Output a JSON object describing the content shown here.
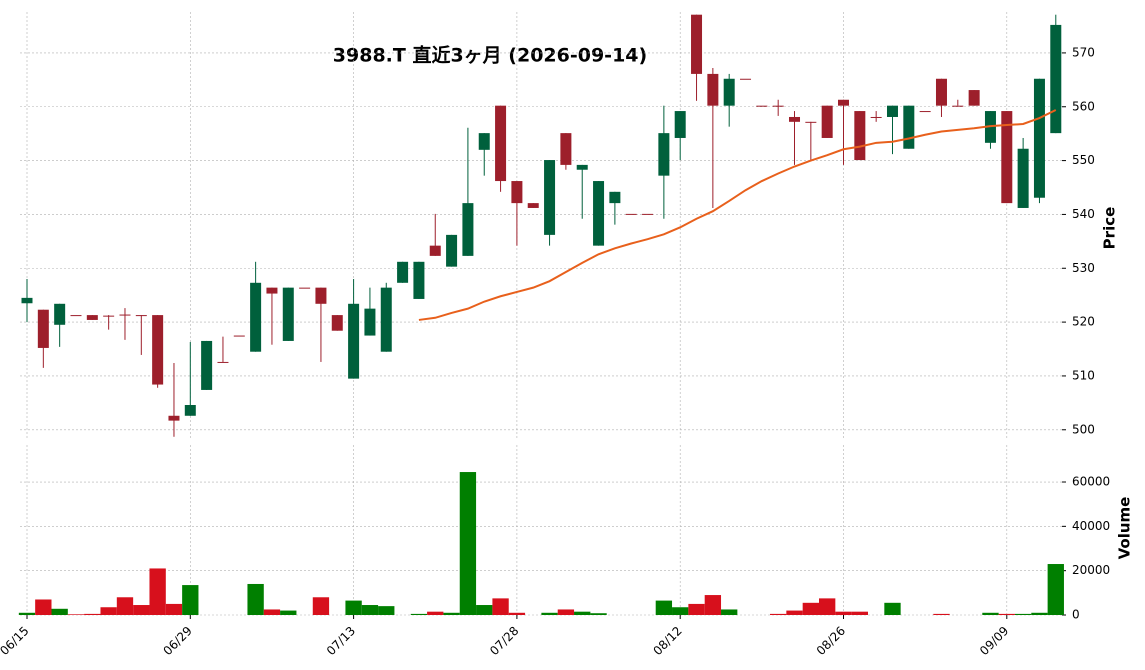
{
  "chart_data": {
    "type": "candlestick",
    "title": "3988.T  直近3ヶ月  (2026-09-14)",
    "ylabel": "Price",
    "volume_label": "Volume",
    "categories": [
      "06/15",
      null,
      null,
      null,
      null,
      null,
      null,
      null,
      null,
      null,
      "06/29",
      null,
      null,
      null,
      null,
      null,
      null,
      null,
      null,
      null,
      "07/13",
      null,
      null,
      null,
      null,
      null,
      null,
      null,
      null,
      null,
      "07/28",
      null,
      null,
      null,
      null,
      null,
      null,
      null,
      null,
      null,
      "08/12",
      null,
      null,
      null,
      null,
      null,
      null,
      null,
      null,
      null,
      "08/26",
      null,
      null,
      null,
      null,
      null,
      null,
      null,
      null,
      null,
      "09/09",
      null,
      null,
      null
    ],
    "open": [
      523.5,
      522.3,
      519.5,
      521.3,
      521.3,
      521.2,
      521.4,
      521.3,
      521.3,
      502.6,
      502.6,
      507.4,
      512.6,
      517.5,
      514.5,
      526.4,
      516.5,
      526.4,
      526.4,
      521.3,
      509.5,
      517.5,
      514.5,
      527.3,
      524.3,
      534.2,
      530.3,
      532.3,
      552,
      560.2,
      546.2,
      542.1,
      536.2,
      555.1,
      548.3,
      534.2,
      542.1,
      540.1,
      540.1,
      547.2,
      554.2,
      577.1,
      566.1,
      560.2,
      565.2,
      560.2,
      560.2,
      558.1,
      557.2,
      560.2,
      561.3,
      559.2,
      558.1,
      558.1,
      552.2,
      559.2,
      565.2,
      560.2,
      563.1,
      553.3,
      559.2,
      541.2,
      543.1,
      555.1
    ],
    "high": [
      528,
      522.3,
      523.4,
      521.3,
      521.3,
      521.3,
      522.6,
      521.3,
      521.3,
      512.4,
      516.3,
      516.5,
      517.3,
      517.5,
      531.2,
      526.4,
      526.4,
      526.4,
      526.4,
      521.3,
      528,
      526.4,
      527.3,
      531.2,
      531.2,
      540.1,
      536.2,
      556.1,
      555.1,
      560.2,
      546.2,
      542.1,
      550.1,
      555.1,
      549.2,
      546.2,
      544.2,
      540.1,
      540.1,
      560.2,
      559.2,
      577.1,
      567.2,
      566.1,
      565.2,
      560.2,
      561.3,
      559.2,
      557.2,
      560.2,
      561.3,
      559.2,
      559.2,
      560.2,
      560.2,
      559.2,
      565.2,
      561.3,
      563.1,
      559.2,
      559.2,
      554.2,
      565.2,
      577.1
    ],
    "low": [
      520,
      511.5,
      515.4,
      521.3,
      520.4,
      518.6,
      516.7,
      513.9,
      507.8,
      498.7,
      502.6,
      507.4,
      512.6,
      517.5,
      514.5,
      515.8,
      516.5,
      526.4,
      512.6,
      518.4,
      509.5,
      517.5,
      514.5,
      527.3,
      524.3,
      532.3,
      530.3,
      532.3,
      547.2,
      544.2,
      534.2,
      541.2,
      534.2,
      548.3,
      539.2,
      534.2,
      538.1,
      540.1,
      540.1,
      539.2,
      550.1,
      561.1,
      541.2,
      556.3,
      565.2,
      560.2,
      558.3,
      549.2,
      550.1,
      554.2,
      549.2,
      550.1,
      557.2,
      551.2,
      552.2,
      559.2,
      558.1,
      560.2,
      560.2,
      552.2,
      542.1,
      541.2,
      542.1,
      555.1
    ],
    "close": [
      524.5,
      515.2,
      523.4,
      521.3,
      520.4,
      521.2,
      521.4,
      521.3,
      508.4,
      501.7,
      504.6,
      516.5,
      512.6,
      517.5,
      527.3,
      525.3,
      526.4,
      526.4,
      523.4,
      518.4,
      523.4,
      522.5,
      526.4,
      531.2,
      531.2,
      532.3,
      536.2,
      542.1,
      555.1,
      546.2,
      542.1,
      541.2,
      550.1,
      549.2,
      549.2,
      546.2,
      544.2,
      540.1,
      540.1,
      555.1,
      559.2,
      566.1,
      560.2,
      565.2,
      565.2,
      560.2,
      560.2,
      557.2,
      557.2,
      554.2,
      560.2,
      550.1,
      558.1,
      560.2,
      560.2,
      559.2,
      560.2,
      560.2,
      560.2,
      559.2,
      542.1,
      552.2,
      565.2,
      575.2
    ],
    "volume": [
      1000,
      7000,
      2800,
      300,
      500,
      3500,
      8000,
      4500,
      21000,
      5000,
      13500,
      0,
      0,
      0,
      14000,
      2500,
      2000,
      0,
      8000,
      0,
      6500,
      4500,
      4000,
      0,
      500,
      1500,
      1000,
      64500,
      4500,
      7500,
      1000,
      0,
      1000,
      2500,
      1500,
      800,
      0,
      0,
      0,
      6500,
      3500,
      5000,
      9000,
      2500,
      0,
      0,
      500,
      2000,
      5500,
      7500,
      1500,
      1500,
      0,
      5500,
      0,
      0,
      500,
      0,
      0,
      1000,
      500,
      500,
      1000,
      23000
    ],
    "ma": [
      null,
      null,
      null,
      null,
      null,
      null,
      null,
      null,
      null,
      null,
      null,
      null,
      null,
      null,
      null,
      null,
      null,
      null,
      null,
      null,
      null,
      null,
      null,
      null,
      520.4,
      520.8,
      521.7,
      522.5,
      523.8,
      524.8,
      525.6,
      526.4,
      527.6,
      529.3,
      531,
      532.6,
      533.7,
      534.6,
      535.4,
      536.3,
      537.6,
      539.2,
      540.6,
      542.5,
      544.5,
      546.2,
      547.6,
      548.9,
      550,
      551,
      552.1,
      552.6,
      553.3,
      553.5,
      554.1,
      554.8,
      555.4,
      555.7,
      556,
      556.4,
      556.6,
      556.8,
      557.9,
      559.4
    ],
    "up_color": "#00603c",
    "down_color": "#9d1f2b",
    "volume_up_color": "#007f00",
    "volume_down_color": "#d7101c",
    "ma_color": "#e8601c",
    "ylim": [
      498.1,
      577.6
    ],
    "yticks": [
      500,
      510,
      520,
      530,
      540,
      550,
      560,
      570
    ],
    "volume_ylim": [
      0,
      76700
    ],
    "volume_yticks": [
      0,
      20000,
      40000,
      60000
    ],
    "grid": true
  }
}
